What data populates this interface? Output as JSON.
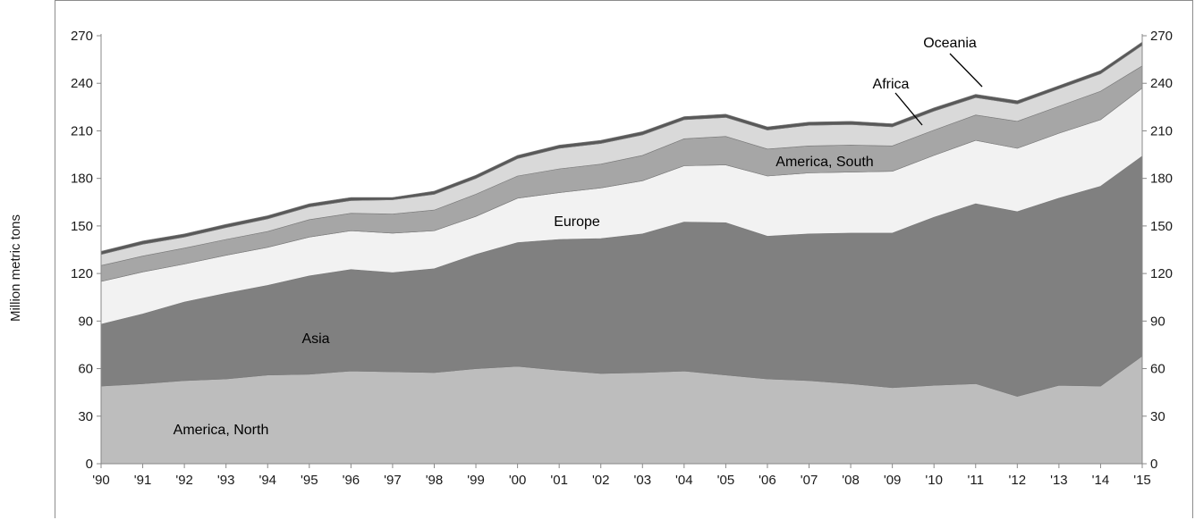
{
  "chart_data": {
    "type": "area",
    "stacked": true,
    "title": "",
    "xlabel": "",
    "ylabel": "Million metric tons",
    "ylim": [
      0,
      270
    ],
    "y_ticks": [
      0,
      30,
      60,
      90,
      120,
      150,
      180,
      210,
      240,
      270
    ],
    "x": [
      "'90",
      "'91",
      "'92",
      "'93",
      "'94",
      "'95",
      "'96",
      "'97",
      "'98",
      "'99",
      "'00",
      "'01",
      "'02",
      "'03",
      "'04",
      "'05",
      "'06",
      "'07",
      "'08",
      "'09",
      "'10",
      "'11",
      "'12",
      "'13",
      "'14",
      "'15"
    ],
    "grid": false,
    "secondary_y_axis": true,
    "series": [
      {
        "name": "America, North",
        "color": "#bdbdbd",
        "values": [
          49,
          50.5,
          52.5,
          53.5,
          56,
          56.5,
          58.5,
          58,
          57.5,
          60,
          61.5,
          59,
          57,
          57.5,
          58.5,
          56,
          53.5,
          52.5,
          50.5,
          48,
          49.5,
          50.5,
          42.5,
          49.5,
          49,
          68
        ]
      },
      {
        "name": "Asia",
        "color": "#808080",
        "values": [
          39,
          44,
          49.5,
          54,
          56.5,
          62,
          64,
          62.5,
          65.5,
          72,
          78,
          82.5,
          85,
          87.5,
          94,
          96,
          90,
          92.5,
          95,
          97.5,
          106,
          113.5,
          116.5,
          118,
          126,
          126
        ]
      },
      {
        "name": "Europe",
        "color": "#f2f2f2",
        "values": [
          27,
          26.5,
          24,
          24,
          24,
          24.5,
          24.5,
          25,
          24,
          24,
          28,
          29.5,
          32,
          33.5,
          35.5,
          36.5,
          38,
          38.5,
          38.5,
          39,
          39,
          40,
          40,
          41,
          42,
          43
        ]
      },
      {
        "name": "America, South",
        "color": "#a6a6a6",
        "values": [
          10,
          10,
          10,
          10,
          10,
          11,
          11,
          12,
          13,
          14,
          14,
          15,
          15,
          16,
          17,
          18,
          17,
          17,
          17,
          16,
          16,
          16,
          17,
          17,
          18,
          14
        ]
      },
      {
        "name": "Africa",
        "color": "#d9d9d9",
        "values": [
          7,
          7.5,
          7,
          7.5,
          8,
          8,
          8,
          9,
          10,
          10,
          11,
          13,
          13,
          13,
          12,
          12,
          12,
          13,
          13,
          12,
          12,
          11,
          11,
          11,
          11,
          13
        ]
      },
      {
        "name": "Oceania",
        "color": "#595959",
        "values": [
          2,
          2,
          2,
          2,
          2,
          2,
          2,
          1.5,
          2,
          2,
          2,
          2,
          2,
          2,
          2,
          2,
          2,
          2,
          2,
          2,
          2,
          2,
          2,
          2,
          2,
          2
        ]
      }
    ],
    "annotations": [
      "America, North",
      "Asia",
      "Europe",
      "America, South",
      "Africa",
      "Oceania"
    ]
  }
}
